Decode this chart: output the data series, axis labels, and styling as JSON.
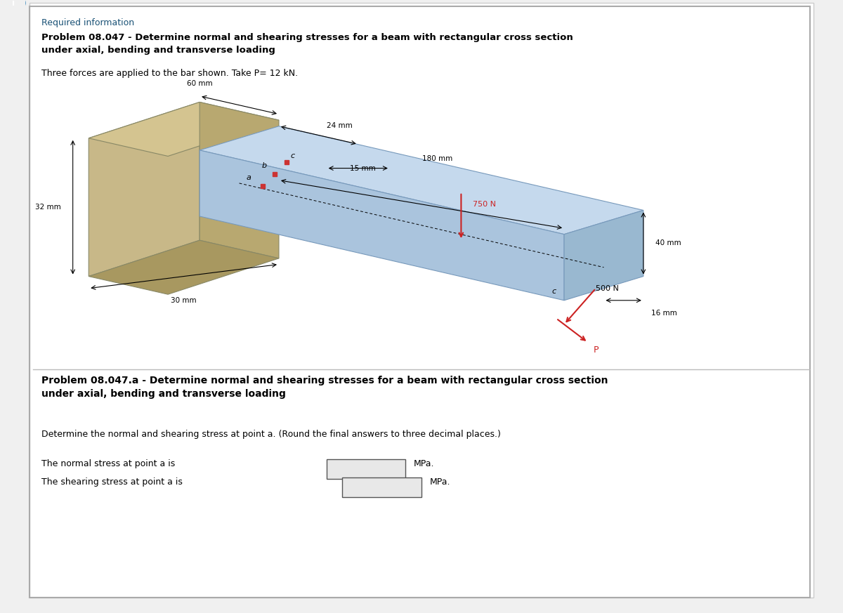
{
  "bg_color": "#f0f0f0",
  "panel_bg": "#ffffff",
  "required_info_text": "Required information",
  "required_info_color": "#1a5276",
  "title1": "Problem 08.047 - Determine normal and shearing stresses for a beam with rectangular cross section\nunder axial, bending and transverse loading",
  "subtitle": "Three forces are applied to the bar shown. Take P= 12 kN.",
  "title2": "Problem 08.047.a - Determine normal and shearing stresses for a beam with rectangular cross section\nunder axial, bending and transverse loading",
  "question_text": "Determine the normal and shearing stress at point a. (Round the final answers to three decimal places.)",
  "answer_line1_pre": "The normal stress at point a is",
  "answer_line1_post": "MPa.",
  "answer_line2_pre": "The shearing stress at point a is",
  "answer_line2_post": "MPa.",
  "dim_60mm": "60 mm",
  "dim_24mm": "24 mm",
  "dim_15mm": "15 mm",
  "dim_180mm": "180 mm",
  "dim_750N": "750 N",
  "dim_40mm": "40 mm",
  "dim_32mm": "32 mm",
  "dim_30mm": "30 mm",
  "dim_500N": "500 N",
  "dim_16mm": "16 mm",
  "label_a": "a",
  "label_b": "b",
  "label_c": "c",
  "label_P": "P",
  "label_C": "c",
  "beam_color_top": "#b8cfe8",
  "beam_color_side": "#a0bdd8",
  "wall_color": "#c8b888",
  "wall_dark": "#b0a070",
  "point_color": "#cc3333"
}
